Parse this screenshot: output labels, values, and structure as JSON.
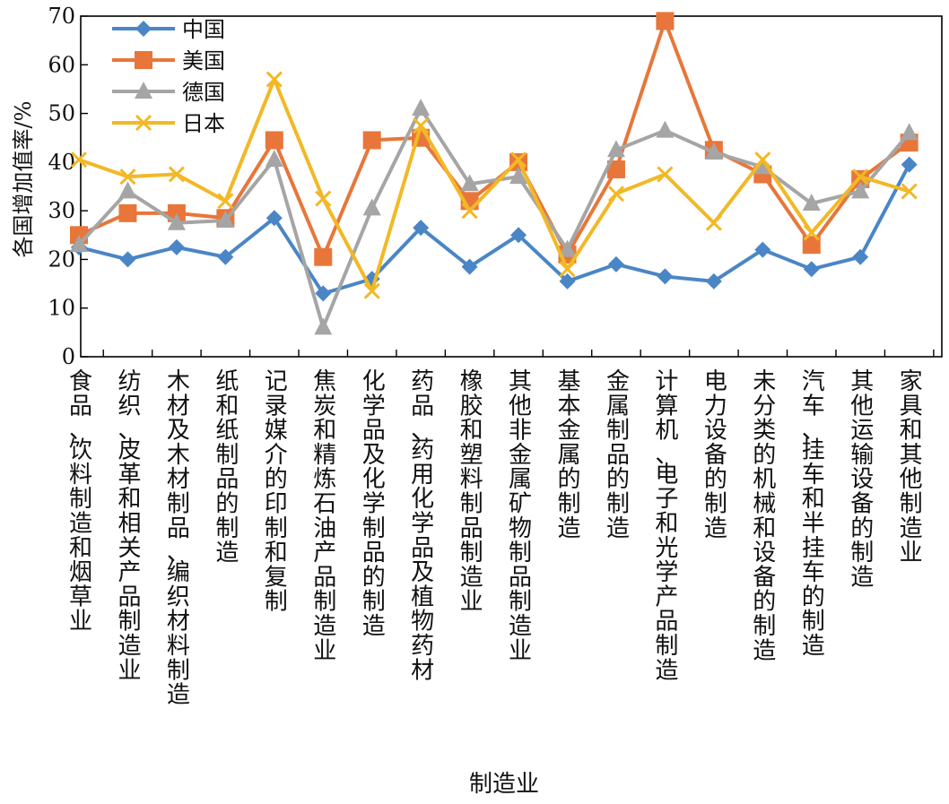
{
  "chart_data": {
    "type": "line",
    "title": "",
    "xlabel": "制造业",
    "ylabel": "各国增加值率/%",
    "ylim": [
      0,
      70
    ],
    "yticks": [
      0,
      10,
      20,
      30,
      40,
      50,
      60,
      70
    ],
    "grid": false,
    "legend_position": "top-left",
    "categories": [
      "食品、饮料制造和烟草业",
      "纺织、皮革和相关产品制造业",
      "木材及木材制品、编织材料制造",
      "纸和纸制品的制造",
      "记录媒介的印制和复制",
      "焦炭和精炼石油产品制造业",
      "化学品及化学制品的制造",
      "药品、药用化学品及植物药材",
      "橡胶和塑料制品制造业",
      "其他非金属矿物制品制造业",
      "基本金属的制造",
      "金属制品的制造",
      "计算机、电子和光学产品制造",
      "电力设备的制造",
      "未分类的机械和设备的制造",
      "汽车、挂车和半挂车的制造",
      "其他运输设备的制造",
      "家具和其他制造业"
    ],
    "series": [
      {
        "name": "中国",
        "color": "#4a86c6",
        "marker": "diamond",
        "values": [
          22.5,
          20,
          22.5,
          20.5,
          28.5,
          13,
          16,
          26.5,
          18.5,
          25,
          15.5,
          19,
          16.5,
          15.5,
          22,
          18,
          20.5,
          39.5
        ]
      },
      {
        "name": "美国",
        "color": "#e8763a",
        "marker": "square",
        "values": [
          25,
          29.5,
          29.5,
          28.5,
          44.5,
          20.5,
          44.5,
          45,
          32,
          40,
          21,
          38.5,
          69,
          42.5,
          37.5,
          23,
          36.5,
          44
        ]
      },
      {
        "name": "德国",
        "color": "#a5a5a5",
        "marker": "triangle",
        "values": [
          23,
          34,
          27.5,
          28,
          40.5,
          6,
          30.5,
          51,
          35.5,
          37,
          22,
          42.5,
          46.5,
          42,
          39,
          31.5,
          34,
          46
        ]
      },
      {
        "name": "日本",
        "color": "#f2b825",
        "marker": "x",
        "values": [
          40.5,
          37,
          37.5,
          32,
          57,
          32.5,
          13.5,
          47.5,
          30,
          40.5,
          18,
          33.5,
          37.5,
          27.5,
          40.5,
          25.5,
          37,
          34
        ]
      }
    ]
  }
}
